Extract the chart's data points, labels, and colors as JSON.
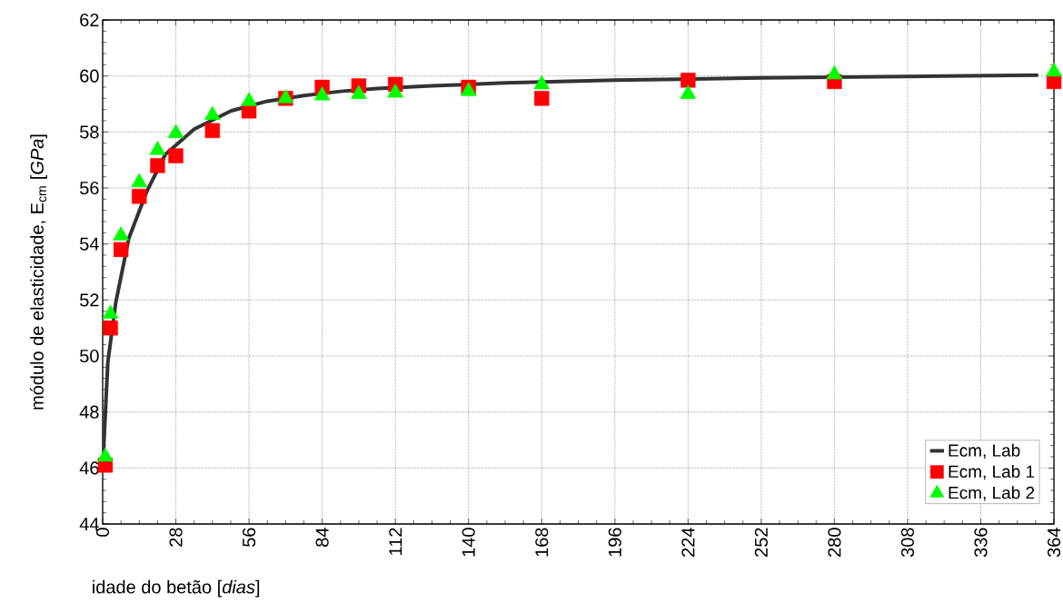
{
  "chart_data": {
    "type": "scatter",
    "xlabel": "idade do betão [*dias*]",
    "ylabel": "módulo de elasticidade, E$_{cm}$ [*GPa*]",
    "xlim": [
      0,
      364
    ],
    "ylim": [
      44,
      62
    ],
    "xticks": [
      0,
      28,
      56,
      84,
      112,
      140,
      168,
      196,
      224,
      252,
      280,
      308,
      336,
      364
    ],
    "yticks": [
      44,
      46,
      48,
      50,
      52,
      54,
      56,
      58,
      60,
      62
    ],
    "grid": true,
    "legend": "bottom right",
    "series": [
      {
        "name": "Ecm, Lab",
        "type": "line",
        "color": "#333333",
        "marker": "none",
        "line_style": "solid",
        "x": [
          0,
          2,
          5,
          10,
          17,
          24,
          35,
          49,
          63,
          77,
          91,
          105,
          126,
          154,
          196,
          252,
          322,
          358
        ],
        "values": [
          46.0,
          49.8,
          51.9,
          54.2,
          55.9,
          57.2,
          58.1,
          58.75,
          59.1,
          59.3,
          59.45,
          59.55,
          59.65,
          59.75,
          59.85,
          59.93,
          60.0,
          60.03
        ]
      },
      {
        "name": "Ecm, Lab 1",
        "color": "#ff0000",
        "marker": "square",
        "x": [
          1,
          3,
          7,
          14,
          21,
          28,
          42,
          56,
          70,
          84,
          98,
          112,
          140,
          168,
          224,
          280,
          364
        ],
        "values": [
          46.1,
          51.0,
          53.8,
          55.7,
          56.8,
          57.15,
          58.05,
          58.75,
          59.2,
          59.6,
          59.65,
          59.7,
          59.6,
          59.2,
          59.85,
          59.8,
          59.8
        ]
      },
      {
        "name": "Ecm, Lab 2",
        "color": "#00ff00",
        "marker": "triangle",
        "x": [
          1,
          3,
          7,
          14,
          21,
          28,
          42,
          56,
          70,
          84,
          98,
          112,
          140,
          168,
          224,
          280,
          364
        ],
        "values": [
          46.4,
          51.5,
          54.3,
          56.2,
          57.35,
          57.95,
          58.6,
          59.1,
          59.2,
          59.3,
          59.35,
          59.4,
          59.45,
          59.7,
          59.35,
          60.05,
          60.15
        ]
      }
    ]
  }
}
